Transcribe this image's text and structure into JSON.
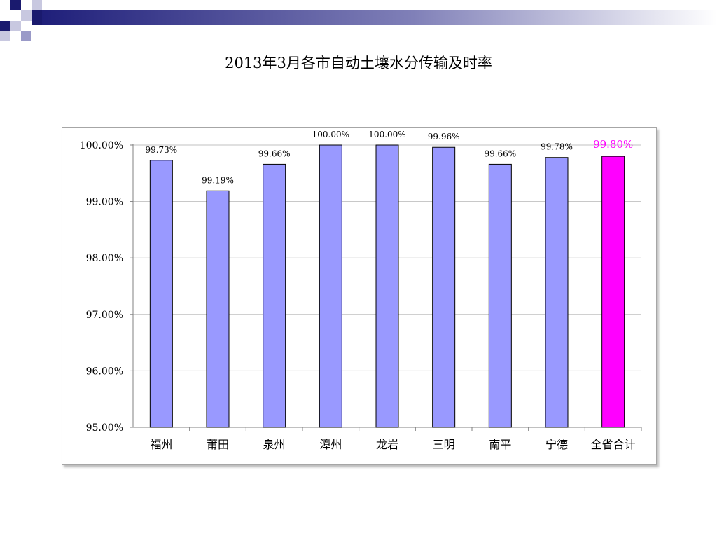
{
  "slide": {
    "title": "2013年3月各市自动土壤水分传输及时率"
  },
  "chart_data": {
    "type": "bar",
    "title": "2013年3月各市自动土壤水分传输及时率",
    "categories": [
      "福州",
      "莆田",
      "泉州",
      "漳州",
      "龙岩",
      "三明",
      "南平",
      "宁德",
      "全省合计"
    ],
    "values": [
      99.73,
      99.19,
      99.66,
      100.0,
      100.0,
      99.96,
      99.66,
      99.78,
      99.8
    ],
    "data_labels": [
      "99.73%",
      "99.19%",
      "99.66%",
      "100.00%",
      "100.00%",
      "99.96%",
      "99.66%",
      "99.78%",
      "99.80%"
    ],
    "yticks": [
      95,
      96,
      97,
      98,
      99,
      100
    ],
    "ytick_labels": [
      "95.00%",
      "96.00%",
      "97.00%",
      "98.00%",
      "99.00%",
      "100.00%"
    ],
    "ylim": [
      95,
      100
    ],
    "xlabel": "",
    "ylabel": "",
    "grid": true,
    "legend": "none",
    "colors": {
      "bar": "#9999ff",
      "highlight_bar": "#ff00ff",
      "highlight_label": "#ff00ff",
      "bar_border": "#000000",
      "grid": "#c0c0c0"
    },
    "highlight_index": 8
  }
}
